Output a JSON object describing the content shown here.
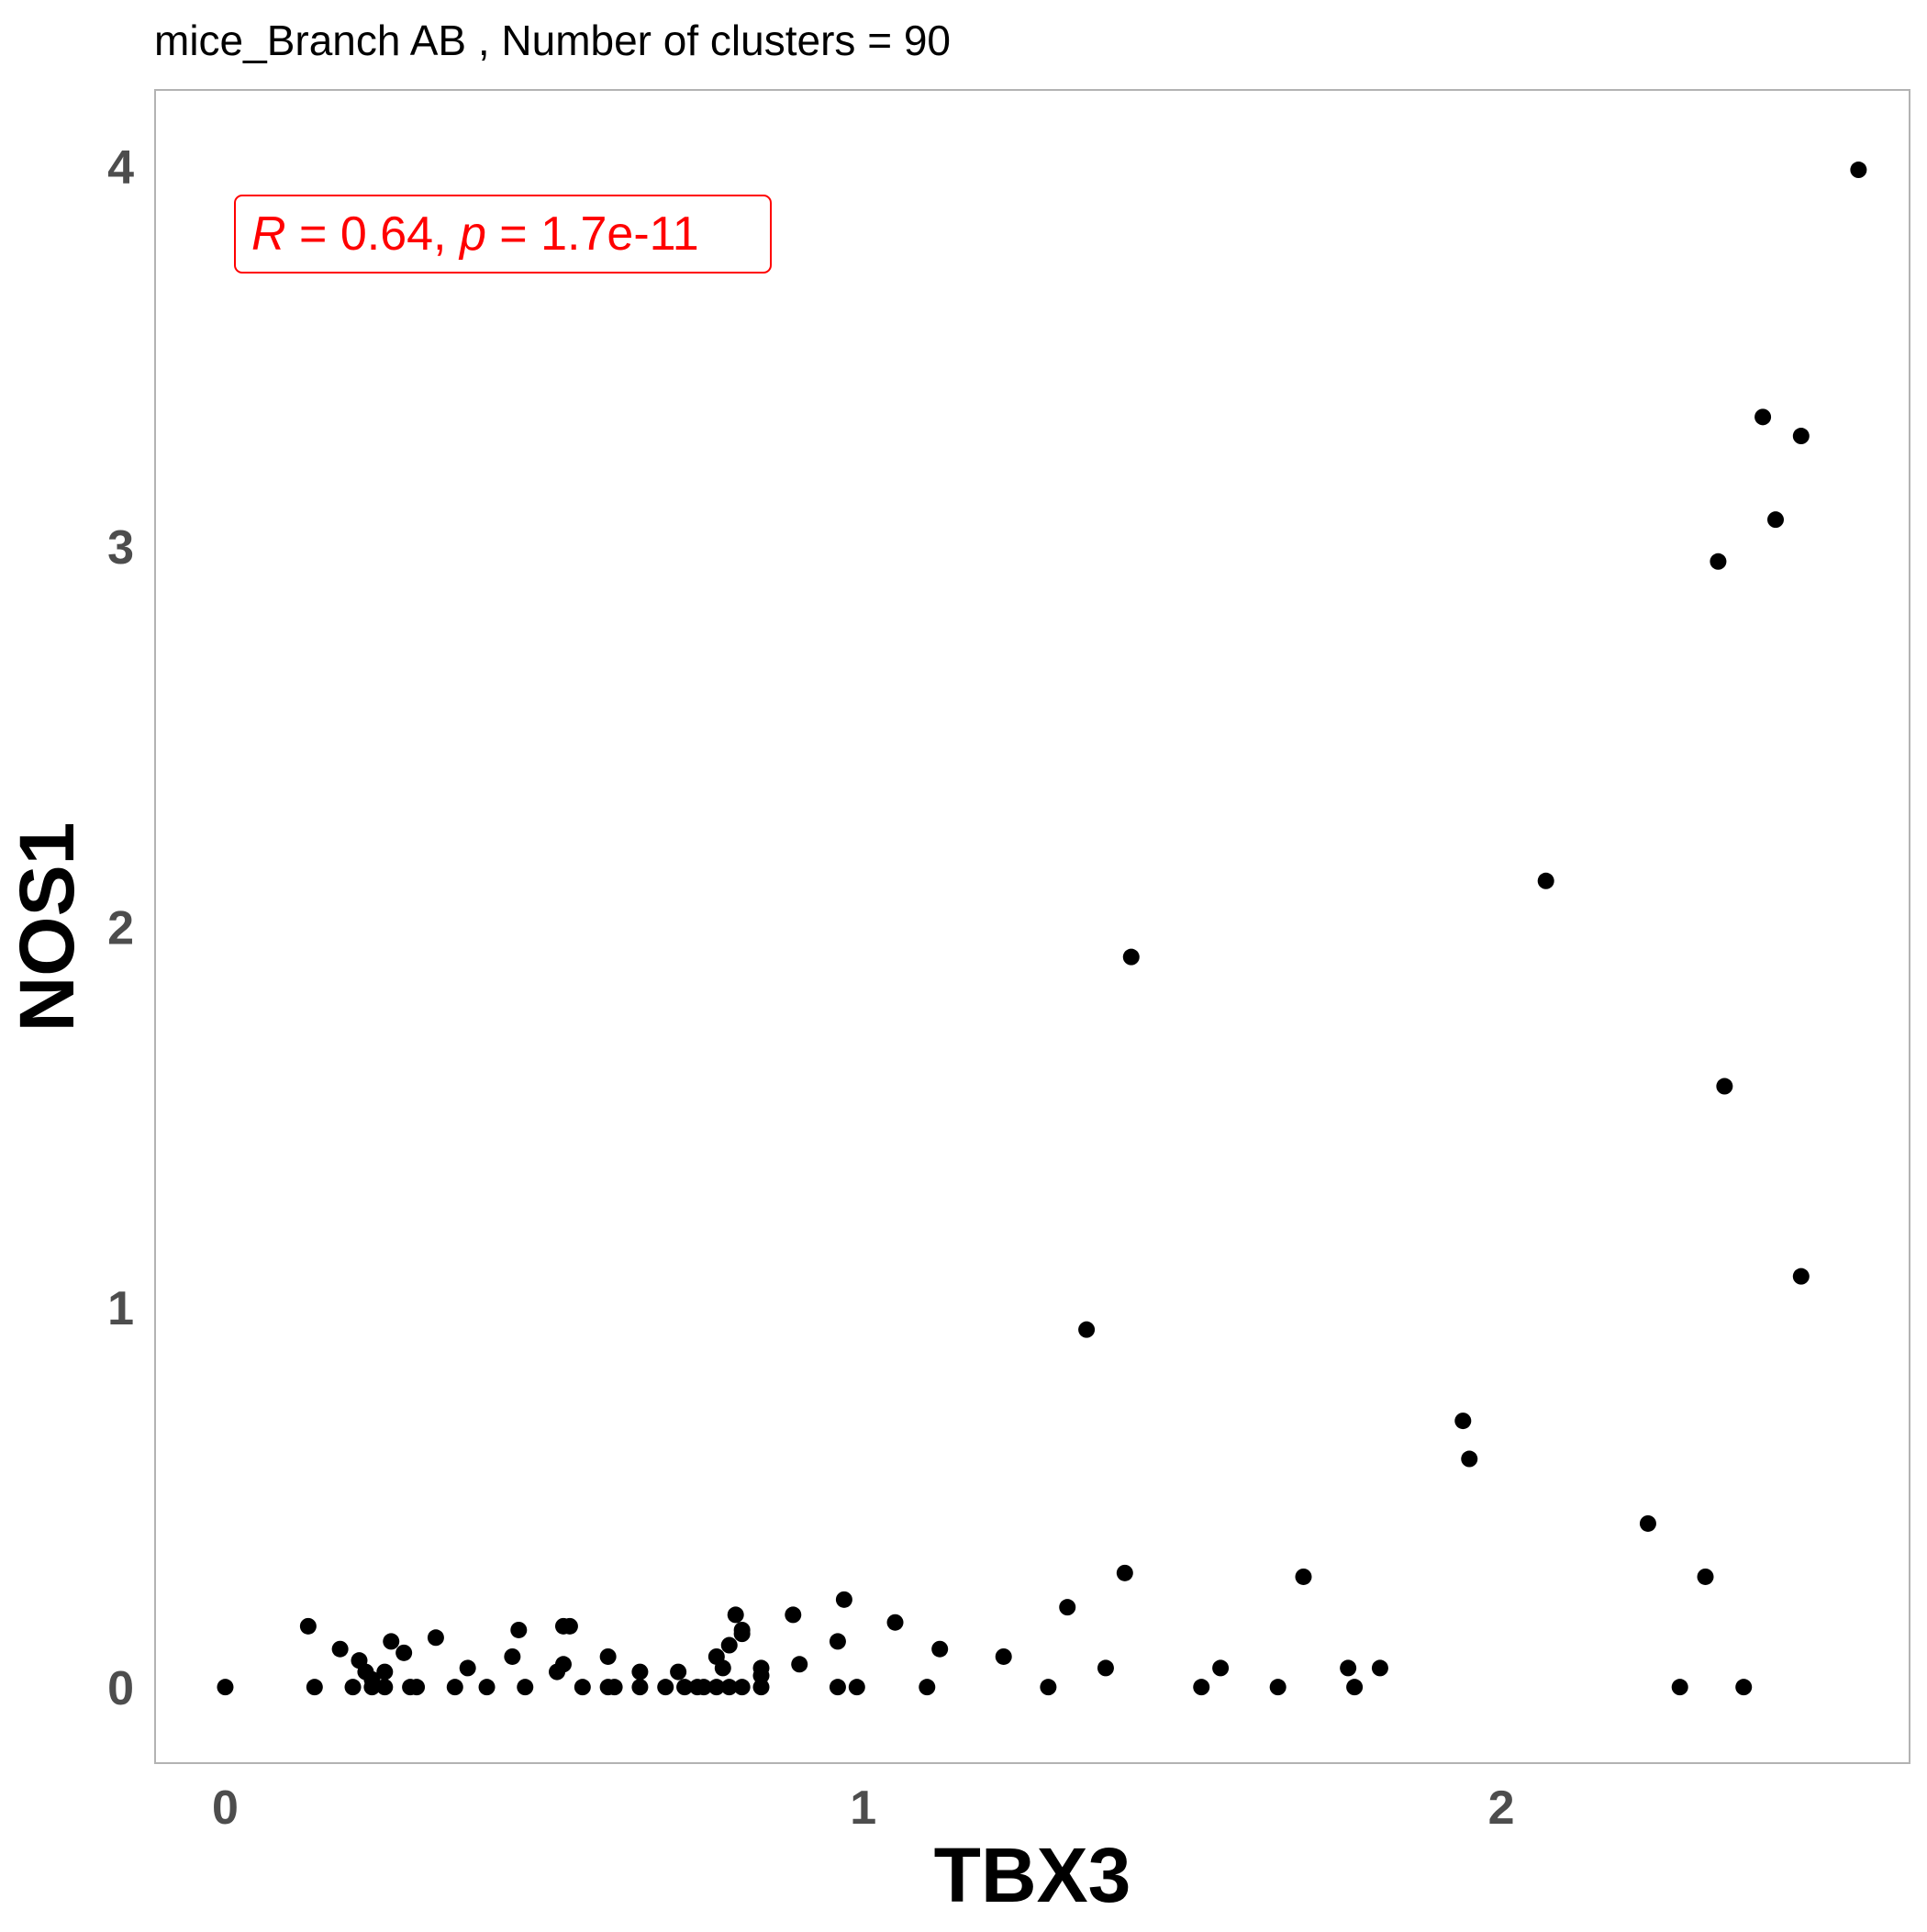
{
  "chart_data": {
    "type": "scatter",
    "title": "mice_Branch AB , Number of clusters =  90",
    "xlabel": "TBX3",
    "ylabel": "NOS1",
    "xlim": [
      -0.11,
      2.64
    ],
    "ylim": [
      -0.2,
      4.2
    ],
    "x_ticks": [
      0,
      1,
      2
    ],
    "y_ticks": [
      0,
      1,
      2,
      3,
      4
    ],
    "x_tick_labels": [
      "0",
      "1",
      "2"
    ],
    "y_tick_labels": [
      "0",
      "1",
      "2",
      "3",
      "4"
    ],
    "grid": false,
    "point_color": "#000000",
    "annotation": {
      "r_symbol": "R",
      "r_text": " = 0.64, ",
      "p_symbol": "p",
      "p_text": " = 1.7e-11",
      "color": "#ff0000",
      "position": "top-left"
    },
    "points": [
      [
        0.0,
        0.0
      ],
      [
        0.13,
        0.16
      ],
      [
        0.14,
        0.0
      ],
      [
        0.18,
        0.1
      ],
      [
        0.2,
        0.0
      ],
      [
        0.21,
        0.07
      ],
      [
        0.22,
        0.04
      ],
      [
        0.23,
        0.02
      ],
      [
        0.23,
        0.0
      ],
      [
        0.25,
        0.04
      ],
      [
        0.25,
        0.0
      ],
      [
        0.26,
        0.12
      ],
      [
        0.28,
        0.09
      ],
      [
        0.29,
        0.0
      ],
      [
        0.3,
        0.0
      ],
      [
        0.33,
        0.13
      ],
      [
        0.36,
        0.0
      ],
      [
        0.38,
        0.05
      ],
      [
        0.41,
        0.0
      ],
      [
        0.45,
        0.08
      ],
      [
        0.46,
        0.15
      ],
      [
        0.47,
        0.0
      ],
      [
        0.52,
        0.04
      ],
      [
        0.53,
        0.16
      ],
      [
        0.53,
        0.06
      ],
      [
        0.54,
        0.16
      ],
      [
        0.56,
        0.0
      ],
      [
        0.6,
        0.08
      ],
      [
        0.6,
        0.0
      ],
      [
        0.61,
        0.0
      ],
      [
        0.65,
        0.04
      ],
      [
        0.65,
        0.0
      ],
      [
        0.69,
        0.0
      ],
      [
        0.71,
        0.04
      ],
      [
        0.72,
        0.0
      ],
      [
        0.74,
        0.0
      ],
      [
        0.75,
        0.0
      ],
      [
        0.77,
        0.0
      ],
      [
        0.77,
        0.08
      ],
      [
        0.78,
        0.05
      ],
      [
        0.79,
        0.11
      ],
      [
        0.79,
        0.0
      ],
      [
        0.8,
        0.19
      ],
      [
        0.81,
        0.0
      ],
      [
        0.81,
        0.15
      ],
      [
        0.81,
        0.14
      ],
      [
        0.84,
        0.05
      ],
      [
        0.84,
        0.03
      ],
      [
        0.84,
        0.0
      ],
      [
        0.89,
        0.19
      ],
      [
        0.9,
        0.06
      ],
      [
        0.96,
        0.12
      ],
      [
        0.96,
        0.0
      ],
      [
        0.97,
        0.23
      ],
      [
        0.99,
        0.0
      ],
      [
        1.05,
        0.17
      ],
      [
        1.1,
        0.0
      ],
      [
        1.12,
        0.1
      ],
      [
        1.22,
        0.08
      ],
      [
        1.29,
        0.0
      ],
      [
        1.32,
        0.21
      ],
      [
        1.35,
        0.94
      ],
      [
        1.38,
        0.05
      ],
      [
        1.41,
        0.3
      ],
      [
        1.42,
        1.92
      ],
      [
        1.53,
        0.0
      ],
      [
        1.56,
        0.05
      ],
      [
        1.65,
        0.0
      ],
      [
        1.69,
        0.29
      ],
      [
        1.76,
        0.05
      ],
      [
        1.77,
        0.0
      ],
      [
        1.81,
        0.05
      ],
      [
        1.94,
        0.7
      ],
      [
        1.95,
        0.6
      ],
      [
        2.07,
        2.12
      ],
      [
        2.23,
        0.43
      ],
      [
        2.28,
        0.0
      ],
      [
        2.32,
        0.29
      ],
      [
        2.34,
        2.96
      ],
      [
        2.35,
        1.58
      ],
      [
        2.38,
        0.0
      ],
      [
        2.41,
        3.34
      ],
      [
        2.43,
        3.07
      ],
      [
        2.47,
        3.29
      ],
      [
        2.47,
        1.08
      ],
      [
        2.56,
        3.99
      ]
    ]
  }
}
